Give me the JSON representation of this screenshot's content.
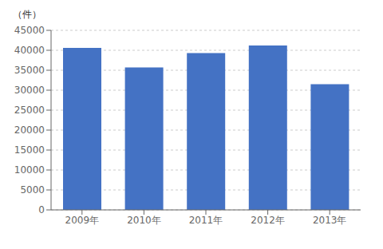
{
  "chart_data": {
    "type": "bar",
    "ylabel": "（件）",
    "categories": [
      "2009年",
      "2010年",
      "2011年",
      "2012年",
      "2013年"
    ],
    "values": [
      40600,
      35700,
      39300,
      41200,
      31500
    ],
    "color": "#4472C4",
    "ylim": [
      0,
      45000
    ],
    "yticks": [
      0,
      5000,
      10000,
      15000,
      20000,
      25000,
      30000,
      35000,
      40000,
      45000
    ],
    "grid": true
  }
}
